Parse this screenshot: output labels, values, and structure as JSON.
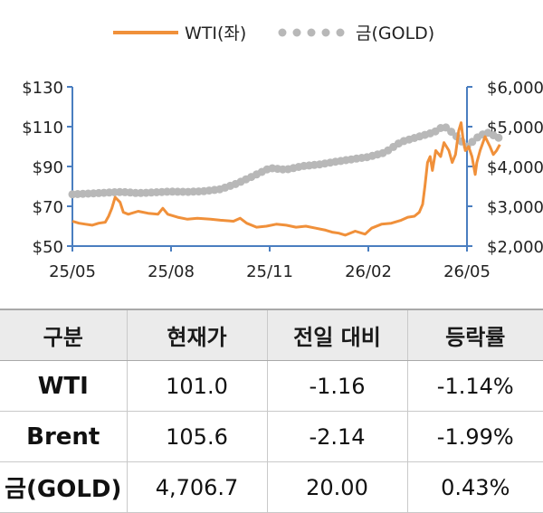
{
  "chart_data": {
    "type": "line",
    "legend": {
      "placement": "top-center",
      "items": [
        {
          "label": "WTI(좌)",
          "style": "line",
          "color": "#f0903a"
        },
        {
          "label": "금(GOLD)",
          "style": "dots",
          "color": "#b8b8b8"
        }
      ]
    },
    "x_tick_labels": [
      "25/05",
      "25/08",
      "25/11",
      "26/02",
      "26/05"
    ],
    "x_range_months": [
      0,
      12
    ],
    "y_left": {
      "ticks": [
        "$130",
        "$110",
        "$90",
        "$70",
        "$50"
      ],
      "tick_values": [
        130,
        110,
        90,
        70,
        50
      ],
      "ylim": [
        50,
        130
      ]
    },
    "y_right": {
      "ticks": [
        "$6,000",
        "$5,000",
        "$4,000",
        "$3,000",
        "$2,000"
      ],
      "tick_values": [
        6000,
        5000,
        4000,
        3000,
        2000
      ],
      "ylim": [
        2000,
        6000
      ]
    },
    "series": [
      {
        "name": "WTI(좌)",
        "axis": "left",
        "color": "#f0903a",
        "points": [
          [
            0,
            62.5
          ],
          [
            0.2,
            61.5
          ],
          [
            0.4,
            61
          ],
          [
            0.6,
            60.5
          ],
          [
            0.8,
            61.5
          ],
          [
            1.0,
            62
          ],
          [
            1.1,
            65
          ],
          [
            1.2,
            69
          ],
          [
            1.3,
            74.5
          ],
          [
            1.45,
            72
          ],
          [
            1.55,
            67
          ],
          [
            1.7,
            66
          ],
          [
            2.0,
            67.5
          ],
          [
            2.3,
            66.5
          ],
          [
            2.6,
            66
          ],
          [
            2.75,
            69
          ],
          [
            2.9,
            66
          ],
          [
            3.2,
            64.5
          ],
          [
            3.5,
            63.5
          ],
          [
            3.8,
            64
          ],
          [
            4.2,
            63.5
          ],
          [
            4.5,
            63
          ],
          [
            4.9,
            62.5
          ],
          [
            5.1,
            64
          ],
          [
            5.3,
            61.5
          ],
          [
            5.6,
            59.5
          ],
          [
            5.9,
            60
          ],
          [
            6.2,
            61
          ],
          [
            6.5,
            60.5
          ],
          [
            6.8,
            59.5
          ],
          [
            7.1,
            60
          ],
          [
            7.4,
            59
          ],
          [
            7.7,
            58
          ],
          [
            7.9,
            57
          ],
          [
            8.1,
            56.5
          ],
          [
            8.3,
            55.5
          ],
          [
            8.6,
            57.5
          ],
          [
            8.9,
            56
          ],
          [
            9.1,
            59
          ],
          [
            9.4,
            61
          ],
          [
            9.7,
            61.5
          ],
          [
            10.0,
            63
          ],
          [
            10.2,
            64.5
          ],
          [
            10.4,
            65
          ],
          [
            10.55,
            67
          ],
          [
            10.65,
            71
          ],
          [
            10.72,
            80
          ],
          [
            10.8,
            92
          ],
          [
            10.88,
            95
          ],
          [
            10.95,
            88
          ],
          [
            11.05,
            98
          ],
          [
            11.2,
            95
          ],
          [
            11.3,
            102
          ],
          [
            11.45,
            98
          ],
          [
            11.55,
            92
          ],
          [
            11.65,
            96
          ],
          [
            11.75,
            108
          ],
          [
            11.82,
            112
          ],
          [
            11.88,
            104
          ],
          [
            11.95,
            98
          ],
          [
            12.05,
            100
          ],
          [
            12.15,
            95
          ],
          [
            12.25,
            86
          ],
          [
            12.3,
            92
          ],
          [
            12.4,
            98
          ],
          [
            12.55,
            105
          ],
          [
            12.7,
            100
          ],
          [
            12.8,
            96
          ],
          [
            12.9,
            98
          ],
          [
            13.0,
            101
          ]
        ]
      },
      {
        "name": "금(GOLD)",
        "axis": "right",
        "color": "#b8b8b8",
        "points": [
          [
            0,
            3300
          ],
          [
            0.5,
            3320
          ],
          [
            1.0,
            3340
          ],
          [
            1.5,
            3360
          ],
          [
            2.0,
            3330
          ],
          [
            2.5,
            3350
          ],
          [
            3.0,
            3370
          ],
          [
            3.5,
            3360
          ],
          [
            4.0,
            3380
          ],
          [
            4.5,
            3430
          ],
          [
            5.0,
            3570
          ],
          [
            5.5,
            3760
          ],
          [
            6.0,
            3960
          ],
          [
            6.5,
            3920
          ],
          [
            7.0,
            4010
          ],
          [
            7.5,
            4050
          ],
          [
            8.0,
            4120
          ],
          [
            8.5,
            4180
          ],
          [
            9.0,
            4240
          ],
          [
            9.5,
            4350
          ],
          [
            10.0,
            4620
          ],
          [
            10.5,
            4740
          ],
          [
            11.0,
            4860
          ],
          [
            11.3,
            5020
          ],
          [
            11.6,
            4820
          ],
          [
            12.0,
            4500
          ],
          [
            12.3,
            4720
          ],
          [
            12.6,
            4860
          ],
          [
            13.0,
            4707
          ]
        ]
      }
    ]
  },
  "table": {
    "headers": [
      "구분",
      "현재가",
      "전일 대비",
      "등락률"
    ],
    "rows": [
      {
        "name": "WTI",
        "price": "101.0",
        "change": "-1.16",
        "pct": "-1.14%"
      },
      {
        "name": "Brent",
        "price": "105.6",
        "change": "-2.14",
        "pct": "-1.99%"
      },
      {
        "name": "금(GOLD)",
        "price": "4,706.7",
        "change": "20.00",
        "pct": "0.43%"
      }
    ]
  },
  "colors": {
    "axis": "#4a7ec0",
    "wti": "#f0903a",
    "gold": "#b8b8b8",
    "header_bg": "#ebebeb"
  }
}
